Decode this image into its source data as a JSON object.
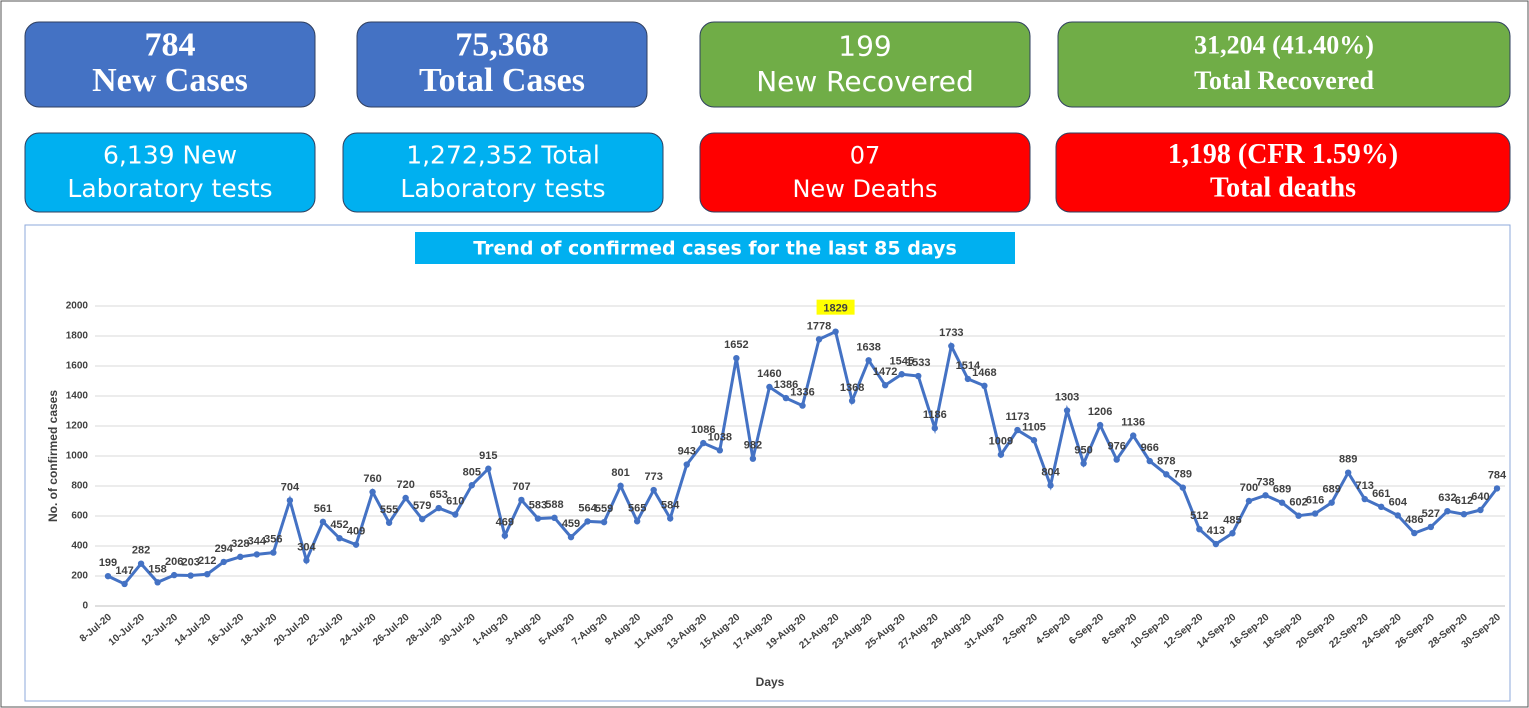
{
  "cards": [
    {
      "line1": "784",
      "line2": "New Cases",
      "color": "#4472c4"
    },
    {
      "line1": "75,368",
      "line2": "Total Cases",
      "color": "#4472c4"
    },
    {
      "line1": "199",
      "line2": "New Recovered",
      "color": "#70ad47"
    },
    {
      "line1": "31,204 (41.40%)",
      "line2": "Total Recovered",
      "color": "#70ad47"
    },
    {
      "line1": "6,139 New",
      "line2": "Laboratory tests",
      "color": "#00b0f0"
    },
    {
      "line1": "1,272,352 Total",
      "line2": "Laboratory tests",
      "color": "#00b0f0"
    },
    {
      "line1": "07",
      "line2": "New Deaths",
      "color": "#ff0000"
    },
    {
      "line1": "1,198 (CFR 1.59%)",
      "line2": "Total deaths",
      "color": "#ff0000"
    }
  ],
  "chart_data": {
    "type": "line",
    "title": "Trend of confirmed cases for the last 85 days",
    "xlabel": "Days",
    "ylabel": "No. of confirmed cases",
    "color": "#4472c4",
    "highlight_color": "#ffff00",
    "categories": [
      "8-Jul-20",
      null,
      "10-Jul-20",
      null,
      "12-Jul-20",
      null,
      "14-Jul-20",
      null,
      "16-Jul-20",
      null,
      "18-Jul-20",
      null,
      "20-Jul-20",
      null,
      "22-Jul-20",
      null,
      "24-Jul-20",
      null,
      "26-Jul-20",
      null,
      "28-Jul-20",
      null,
      "30-Jul-20",
      null,
      "1-Aug-20",
      null,
      "3-Aug-20",
      null,
      "5-Aug-20",
      null,
      "7-Aug-20",
      null,
      "9-Aug-20",
      null,
      "11-Aug-20",
      null,
      "13-Aug-20",
      null,
      "15-Aug-20",
      null,
      "17-Aug-20",
      null,
      "19-Aug-20",
      null,
      "21-Aug-20",
      null,
      "23-Aug-20",
      null,
      "25-Aug-20",
      null,
      "27-Aug-20",
      null,
      "29-Aug-20",
      null,
      "31-Aug-20",
      null,
      "2-Sep-20",
      null,
      "4-Sep-20",
      null,
      "6-Sep-20",
      null,
      "8-Sep-20",
      null,
      "10-Sep-20",
      null,
      "12-Sep-20",
      null,
      "14-Sep-20",
      null,
      "16-Sep-20",
      null,
      "18-Sep-20",
      null,
      "20-Sep-20",
      null,
      "22-Sep-20",
      null,
      "24-Sep-20",
      null,
      "26-Sep-20",
      null,
      "28-Sep-20",
      null,
      "30-Sep-20"
    ],
    "values": [
      199,
      147,
      282,
      158,
      206,
      203,
      212,
      294,
      328,
      344,
      356,
      704,
      304,
      561,
      452,
      409,
      760,
      555,
      720,
      579,
      653,
      610,
      805,
      915,
      469,
      707,
      583,
      588,
      459,
      564,
      559,
      801,
      565,
      773,
      584,
      943,
      1086,
      1038,
      1652,
      982,
      1460,
      1386,
      1336,
      1778,
      1829,
      1368,
      1638,
      1472,
      1545,
      1533,
      1186,
      1733,
      1514,
      1468,
      1009,
      1173,
      1105,
      804,
      1303,
      950,
      1206,
      976,
      1136,
      966,
      878,
      789,
      512,
      413,
      485,
      700,
      738,
      689,
      602,
      616,
      689,
      889,
      713,
      661,
      604,
      486,
      527,
      632,
      612,
      640,
      784
    ],
    "highlight": 44,
    "ylim": [
      0,
      2000
    ],
    "yticks": [
      0,
      200,
      400,
      600,
      800,
      1000,
      1200,
      1400,
      1600,
      1800,
      2000
    ],
    "grid": true
  }
}
